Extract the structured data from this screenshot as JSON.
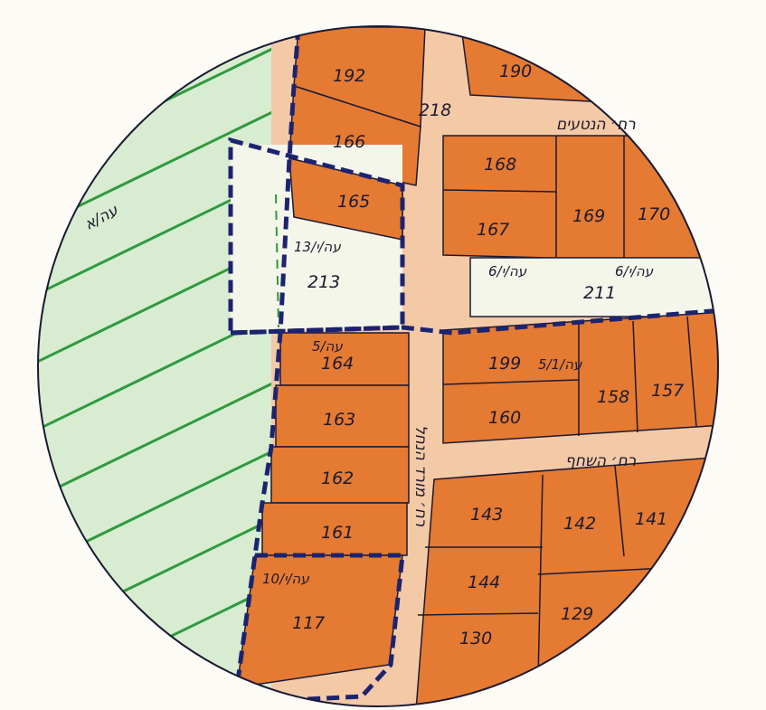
{
  "colors": {
    "paper": "#fdfbf6",
    "green_zone": "#d8ecd1",
    "green_line": "#2f9a3e",
    "orange_lot": "#e57a33",
    "orange_light": "#f0a468",
    "road": "#f4c9a6",
    "white_lot": "#f4f6ea",
    "outline": "#1a1a33",
    "dashed_border": "#1c2370"
  },
  "map": {
    "green_zone_label": "עה/א",
    "lots": {
      "l192": "192",
      "l166": "166",
      "l165": "165",
      "l213": "213",
      "l164": "164",
      "l163": "163",
      "l162": "162",
      "l161": "161",
      "l117": "117",
      "l190": "190",
      "l218": "218",
      "l168": "168",
      "l167": "167",
      "l169": "169",
      "l170": "170",
      "l211": "211",
      "l199": "199",
      "l160": "160",
      "l158": "158",
      "l157": "157",
      "l143": "143",
      "l142": "142",
      "l141": "141",
      "l144": "144",
      "l130": "130",
      "l129": "129"
    },
    "plan_refs": {
      "r13": "עה/י/13",
      "r6a": "עה/י/6",
      "r6b": "עה/י/6",
      "r5a": "עה/5",
      "r5b": "עה/5/1",
      "r10": "עה/י/10"
    },
    "streets": {
      "top": "רח׳ הנטעים",
      "middle": "רח׳ השחף",
      "vertical": "רח׳ מורד הנחל"
    }
  }
}
